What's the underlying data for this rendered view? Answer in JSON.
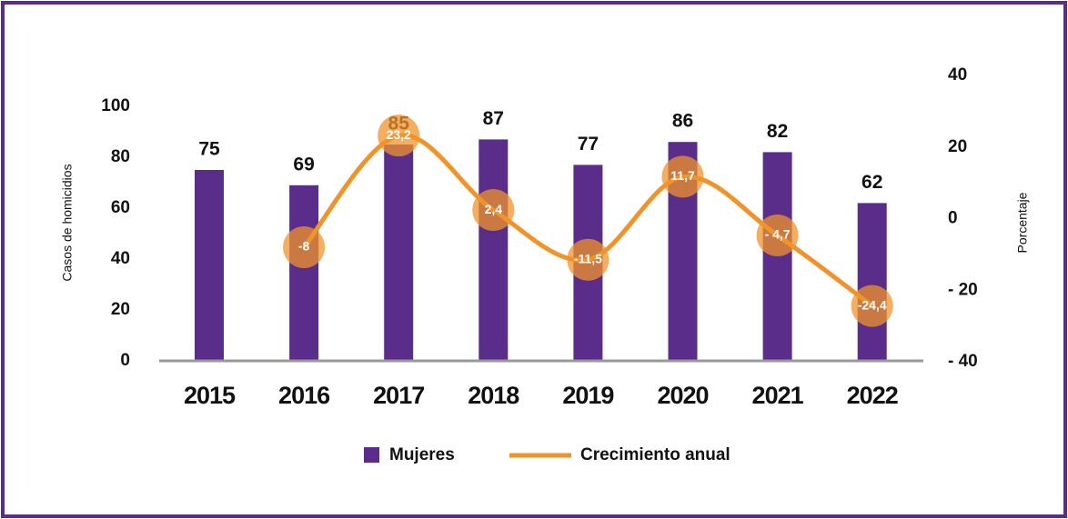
{
  "chart_data": {
    "type": "bar-line",
    "y_label": "Casos de homicidios",
    "y2_label": "Porcentaje",
    "categories": [
      "2015",
      "2016",
      "2017",
      "2018",
      "2019",
      "2020",
      "2021",
      "2022"
    ],
    "series": [
      {
        "name": "Mujeres",
        "color": "#5b2d8a",
        "values": [
          75,
          69,
          85,
          87,
          77,
          86,
          82,
          62
        ]
      },
      {
        "name": "Crecimiento anual",
        "color": "#f0932b",
        "axis": "y2",
        "values": [
          null,
          -8,
          23.2,
          2.4,
          -11.5,
          11.7,
          -4.7,
          -24.4
        ],
        "value_labels": [
          null,
          "-8",
          "23,2",
          "2,4",
          "-11,5",
          "11,7",
          "- 4,7",
          "-24,4"
        ]
      }
    ],
    "ylim": [
      0,
      100
    ],
    "yticks": [
      0,
      20,
      40,
      60,
      80,
      100
    ],
    "y2lim": [
      -40,
      40
    ],
    "y2ticks": [
      {
        "value": -40,
        "label": "- 40"
      },
      {
        "value": -20,
        "label": "- 20"
      },
      0,
      20,
      40
    ]
  }
}
